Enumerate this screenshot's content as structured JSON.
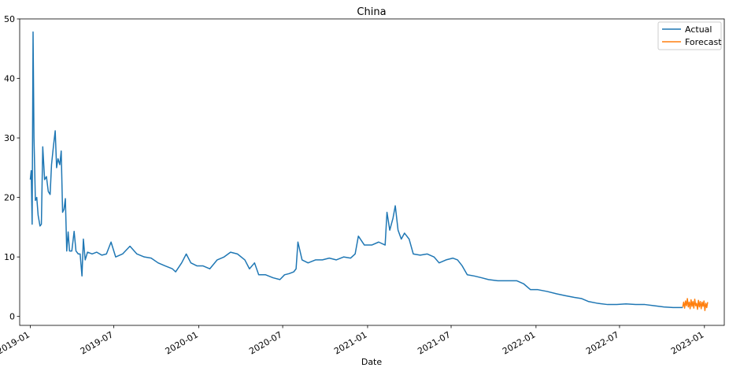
{
  "chart_data": {
    "type": "line",
    "title": "China",
    "xlabel": "Date",
    "ylabel": "",
    "xlim": [
      "2018-12-09",
      "2023-02-13"
    ],
    "ylim": [
      -1.5,
      50
    ],
    "grid": false,
    "legend_position": "top-right",
    "x_ticks": [
      "2019-01",
      "2019-07",
      "2020-01",
      "2020-07",
      "2021-01",
      "2021-07",
      "2022-01",
      "2022-07",
      "2023-01"
    ],
    "y_ticks": [
      0,
      10,
      20,
      30,
      40,
      50
    ],
    "series": [
      {
        "name": "Actual",
        "color": "#1f77b4",
        "points": [
          [
            "2019-01-01",
            23.0
          ],
          [
            "2019-01-03",
            24.5
          ],
          [
            "2019-01-05",
            15.5
          ],
          [
            "2019-01-07",
            47.8
          ],
          [
            "2019-01-09",
            30.0
          ],
          [
            "2019-01-12",
            19.5
          ],
          [
            "2019-01-15",
            20.0
          ],
          [
            "2019-01-18",
            17.0
          ],
          [
            "2019-01-22",
            15.2
          ],
          [
            "2019-01-25",
            15.5
          ],
          [
            "2019-01-28",
            28.5
          ],
          [
            "2019-02-01",
            23.0
          ],
          [
            "2019-02-05",
            23.5
          ],
          [
            "2019-02-09",
            21.0
          ],
          [
            "2019-02-13",
            20.5
          ],
          [
            "2019-02-16",
            25.5
          ],
          [
            "2019-02-20",
            28.5
          ],
          [
            "2019-02-24",
            31.2
          ],
          [
            "2019-02-27",
            25.0
          ],
          [
            "2019-03-02",
            26.5
          ],
          [
            "2019-03-06",
            25.5
          ],
          [
            "2019-03-09",
            27.8
          ],
          [
            "2019-03-12",
            17.5
          ],
          [
            "2019-03-15",
            18.0
          ],
          [
            "2019-03-18",
            19.8
          ],
          [
            "2019-03-21",
            11.0
          ],
          [
            "2019-03-24",
            14.2
          ],
          [
            "2019-03-27",
            11.0
          ],
          [
            "2019-04-01",
            11.0
          ],
          [
            "2019-04-06",
            14.3
          ],
          [
            "2019-04-10",
            11.0
          ],
          [
            "2019-04-15",
            10.5
          ],
          [
            "2019-04-19",
            10.5
          ],
          [
            "2019-04-23",
            6.8
          ],
          [
            "2019-04-26",
            13.0
          ],
          [
            "2019-04-30",
            9.5
          ],
          [
            "2019-05-05",
            10.8
          ],
          [
            "2019-05-15",
            10.5
          ],
          [
            "2019-05-25",
            10.8
          ],
          [
            "2019-06-05",
            10.3
          ],
          [
            "2019-06-15",
            10.5
          ],
          [
            "2019-06-25",
            12.5
          ],
          [
            "2019-07-05",
            10.0
          ],
          [
            "2019-07-20",
            10.5
          ],
          [
            "2019-08-05",
            11.8
          ],
          [
            "2019-08-20",
            10.5
          ],
          [
            "2019-09-05",
            10.0
          ],
          [
            "2019-09-20",
            9.8
          ],
          [
            "2019-10-05",
            9.0
          ],
          [
            "2019-10-20",
            8.5
          ],
          [
            "2019-11-05",
            8.0
          ],
          [
            "2019-11-12",
            7.5
          ],
          [
            "2019-11-25",
            9.0
          ],
          [
            "2019-12-05",
            10.5
          ],
          [
            "2019-12-15",
            9.0
          ],
          [
            "2019-12-28",
            8.5
          ],
          [
            "2020-01-10",
            8.5
          ],
          [
            "2020-01-25",
            8.0
          ],
          [
            "2020-02-10",
            9.5
          ],
          [
            "2020-02-25",
            10.0
          ],
          [
            "2020-03-10",
            10.8
          ],
          [
            "2020-03-25",
            10.5
          ],
          [
            "2020-04-10",
            9.5
          ],
          [
            "2020-04-20",
            8.0
          ],
          [
            "2020-05-01",
            9.0
          ],
          [
            "2020-05-10",
            7.0
          ],
          [
            "2020-05-25",
            7.0
          ],
          [
            "2020-06-10",
            6.5
          ],
          [
            "2020-06-25",
            6.2
          ],
          [
            "2020-07-05",
            7.0
          ],
          [
            "2020-07-15",
            7.2
          ],
          [
            "2020-07-25",
            7.5
          ],
          [
            "2020-07-30",
            8.0
          ],
          [
            "2020-08-03",
            12.5
          ],
          [
            "2020-08-12",
            9.5
          ],
          [
            "2020-08-25",
            9.0
          ],
          [
            "2020-09-10",
            9.5
          ],
          [
            "2020-09-25",
            9.5
          ],
          [
            "2020-10-10",
            9.8
          ],
          [
            "2020-10-25",
            9.5
          ],
          [
            "2020-11-10",
            10.0
          ],
          [
            "2020-11-25",
            9.8
          ],
          [
            "2020-12-05",
            10.5
          ],
          [
            "2020-12-12",
            13.5
          ],
          [
            "2020-12-25",
            12.0
          ],
          [
            "2021-01-10",
            12.0
          ],
          [
            "2021-01-25",
            12.5
          ],
          [
            "2021-02-08",
            12.0
          ],
          [
            "2021-02-12",
            17.5
          ],
          [
            "2021-02-18",
            14.5
          ],
          [
            "2021-02-25",
            16.5
          ],
          [
            "2021-03-02",
            18.6
          ],
          [
            "2021-03-08",
            14.5
          ],
          [
            "2021-03-15",
            13.0
          ],
          [
            "2021-03-22",
            14.0
          ],
          [
            "2021-04-01",
            13.0
          ],
          [
            "2021-04-10",
            10.5
          ],
          [
            "2021-04-25",
            10.3
          ],
          [
            "2021-05-10",
            10.5
          ],
          [
            "2021-05-25",
            10.0
          ],
          [
            "2021-06-05",
            9.0
          ],
          [
            "2021-06-20",
            9.5
          ],
          [
            "2021-07-05",
            9.8
          ],
          [
            "2021-07-15",
            9.5
          ],
          [
            "2021-07-25",
            8.5
          ],
          [
            "2021-08-05",
            7.0
          ],
          [
            "2021-08-20",
            6.8
          ],
          [
            "2021-09-05",
            6.5
          ],
          [
            "2021-09-20",
            6.2
          ],
          [
            "2021-10-10",
            6.0
          ],
          [
            "2021-10-30",
            6.0
          ],
          [
            "2021-11-20",
            6.0
          ],
          [
            "2021-12-05",
            5.5
          ],
          [
            "2021-12-20",
            4.5
          ],
          [
            "2022-01-05",
            4.5
          ],
          [
            "2022-01-25",
            4.2
          ],
          [
            "2022-02-15",
            3.8
          ],
          [
            "2022-03-05",
            3.5
          ],
          [
            "2022-03-25",
            3.2
          ],
          [
            "2022-04-10",
            3.0
          ],
          [
            "2022-04-25",
            2.5
          ],
          [
            "2022-05-15",
            2.2
          ],
          [
            "2022-06-05",
            2.0
          ],
          [
            "2022-06-25",
            2.0
          ],
          [
            "2022-07-15",
            2.1
          ],
          [
            "2022-08-05",
            2.0
          ],
          [
            "2022-08-25",
            2.0
          ],
          [
            "2022-09-15",
            1.8
          ],
          [
            "2022-10-05",
            1.6
          ],
          [
            "2022-10-25",
            1.5
          ],
          [
            "2022-11-15",
            1.5
          ]
        ]
      },
      {
        "name": "Forecast",
        "color": "#ff7f0e",
        "points": [
          [
            "2022-11-15",
            1.6
          ],
          [
            "2022-11-17",
            2.4
          ],
          [
            "2022-11-19",
            1.4
          ],
          [
            "2022-11-21",
            2.6
          ],
          [
            "2022-11-23",
            1.8
          ],
          [
            "2022-11-25",
            3.0
          ],
          [
            "2022-11-27",
            1.6
          ],
          [
            "2022-11-29",
            2.4
          ],
          [
            "2022-12-01",
            1.3
          ],
          [
            "2022-12-03",
            2.8
          ],
          [
            "2022-12-05",
            1.7
          ],
          [
            "2022-12-07",
            2.5
          ],
          [
            "2022-12-09",
            1.4
          ],
          [
            "2022-12-11",
            2.9
          ],
          [
            "2022-12-13",
            1.8
          ],
          [
            "2022-12-15",
            2.2
          ],
          [
            "2022-12-17",
            1.2
          ],
          [
            "2022-12-19",
            2.7
          ],
          [
            "2022-12-21",
            1.6
          ],
          [
            "2022-12-23",
            2.5
          ],
          [
            "2022-12-25",
            1.3
          ],
          [
            "2022-12-27",
            2.4
          ],
          [
            "2022-12-29",
            1.7
          ],
          [
            "2022-12-31",
            2.6
          ],
          [
            "2023-01-02",
            1.0
          ],
          [
            "2023-01-04",
            2.2
          ],
          [
            "2023-01-06",
            1.5
          ],
          [
            "2023-01-08",
            2.4
          ]
        ]
      }
    ]
  }
}
